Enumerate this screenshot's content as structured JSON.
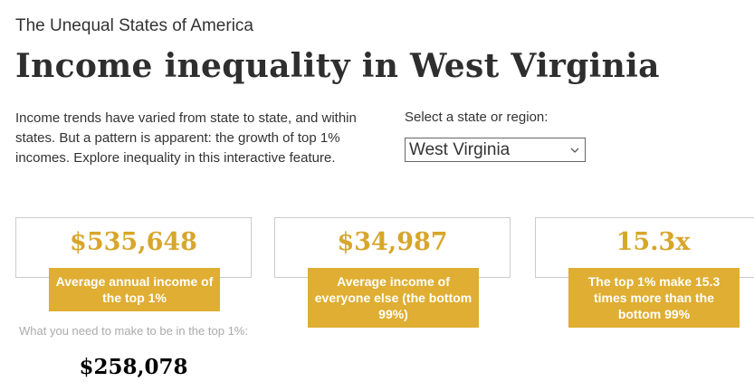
{
  "header": {
    "kicker": "The Unequal States of America",
    "title": "Income inequality in West Virginia"
  },
  "intro": {
    "text": "Income trends have varied from state to state, and within states. But a pattern is apparent: the growth of top 1% incomes. Explore inequality in this interactive feature."
  },
  "selector": {
    "label": "Select a state or region:",
    "value": "West Virginia"
  },
  "cards": [
    {
      "value": "$535,648",
      "label": "Average annual income of the top 1%"
    },
    {
      "value": "$34,987",
      "label": "Average income of everyone else (the bottom 99%)"
    },
    {
      "value": "15.3x",
      "label": "The top 1% make 15.3 times more than the bottom 99%"
    }
  ],
  "threshold": {
    "label": "What you need to make to be in the top 1%:",
    "value": "$258,078"
  }
}
